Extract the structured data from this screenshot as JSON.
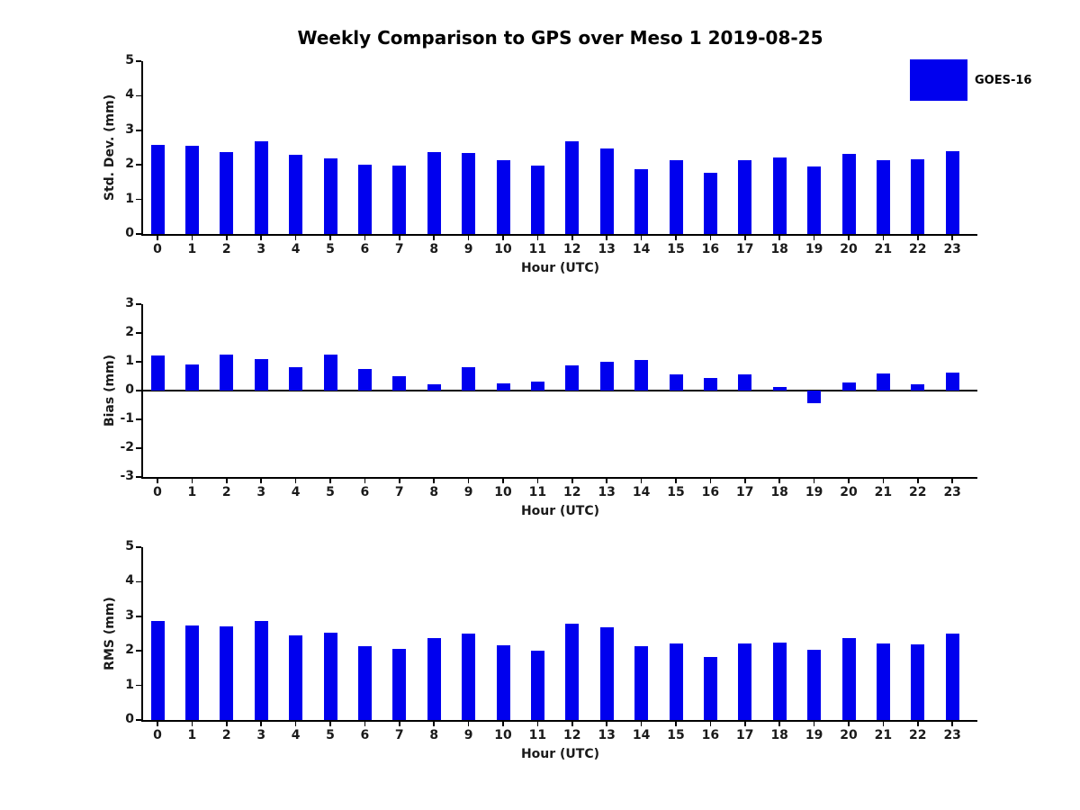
{
  "title": "Weekly Comparison to GPS over Meso 1 2019-08-25",
  "legend": {
    "label": "GOES-16",
    "color": "#0000ee"
  },
  "chart_data": [
    {
      "type": "bar",
      "name": "std-dev",
      "title": "",
      "ylabel": "Std. Dev. (mm)",
      "xlabel": "Hour (UTC)",
      "ylim": [
        0,
        5
      ],
      "yticks": [
        0,
        1,
        2,
        3,
        4,
        5
      ],
      "grid": false,
      "legend_position": "upper-right-of-figure",
      "categories": [
        "0",
        "1",
        "2",
        "3",
        "4",
        "5",
        "6",
        "7",
        "8",
        "9",
        "10",
        "11",
        "12",
        "13",
        "14",
        "15",
        "16",
        "17",
        "18",
        "19",
        "20",
        "21",
        "22",
        "23"
      ],
      "series": [
        {
          "name": "GOES-16",
          "values": [
            2.58,
            2.55,
            2.38,
            2.67,
            2.3,
            2.2,
            2.01,
            1.98,
            2.37,
            2.34,
            2.14,
            1.99,
            2.67,
            2.48,
            1.88,
            2.14,
            1.76,
            2.13,
            2.22,
            1.95,
            2.33,
            2.13,
            2.17,
            2.4
          ]
        }
      ]
    },
    {
      "type": "bar",
      "name": "bias",
      "title": "",
      "ylabel": "Bias (mm)",
      "xlabel": "Hour (UTC)",
      "ylim": [
        -3,
        3
      ],
      "yticks": [
        -3,
        -2,
        -1,
        0,
        1,
        2,
        3
      ],
      "grid": false,
      "zero_line": true,
      "categories": [
        "0",
        "1",
        "2",
        "3",
        "4",
        "5",
        "6",
        "7",
        "8",
        "9",
        "10",
        "11",
        "12",
        "13",
        "14",
        "15",
        "16",
        "17",
        "18",
        "19",
        "20",
        "21",
        "22",
        "23"
      ],
      "series": [
        {
          "name": "GOES-16",
          "values": [
            1.21,
            0.92,
            1.24,
            1.1,
            0.82,
            1.26,
            0.76,
            0.51,
            0.23,
            0.8,
            0.26,
            0.32,
            0.87,
            1.0,
            1.07,
            0.56,
            0.43,
            0.56,
            0.13,
            -0.43,
            0.28,
            0.59,
            0.21,
            0.63
          ]
        }
      ]
    },
    {
      "type": "bar",
      "name": "rms",
      "title": "",
      "ylabel": "RMS (mm)",
      "xlabel": "Hour (UTC)",
      "ylim": [
        0,
        5
      ],
      "yticks": [
        0,
        1,
        2,
        3,
        4,
        5
      ],
      "grid": false,
      "categories": [
        "0",
        "1",
        "2",
        "3",
        "4",
        "5",
        "6",
        "7",
        "8",
        "9",
        "10",
        "11",
        "12",
        "13",
        "14",
        "15",
        "16",
        "17",
        "18",
        "19",
        "20",
        "21",
        "22",
        "23"
      ],
      "series": [
        {
          "name": "GOES-16",
          "values": [
            2.87,
            2.74,
            2.7,
            2.87,
            2.46,
            2.53,
            2.13,
            2.05,
            2.37,
            2.5,
            2.17,
            2.01,
            2.79,
            2.67,
            2.13,
            2.22,
            1.82,
            2.22,
            2.25,
            2.03,
            2.37,
            2.22,
            2.2,
            2.5
          ]
        }
      ]
    }
  ]
}
